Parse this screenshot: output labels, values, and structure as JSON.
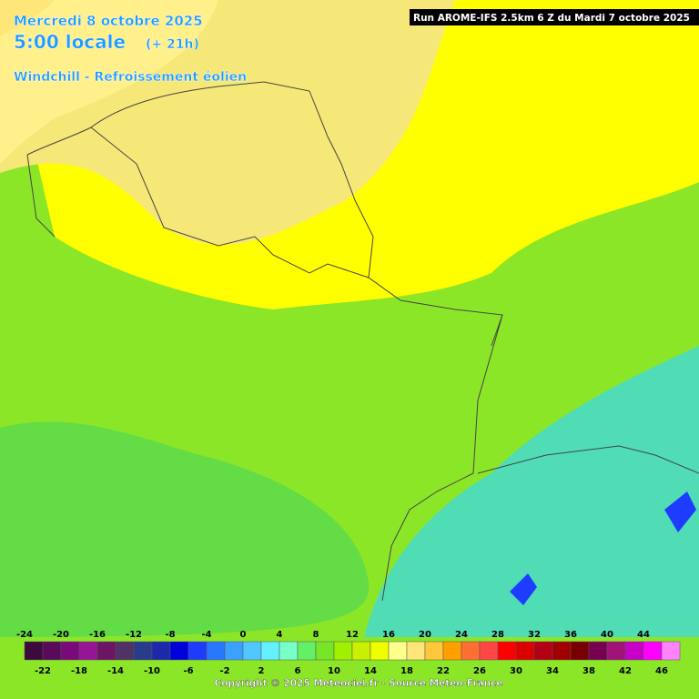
{
  "header": {
    "date": "Mercredi 8 octobre 2025",
    "time": "5:00 locale",
    "offset": "(+ 21h)",
    "parameter": "Windchill - Refroissement éolien",
    "run": "Run AROME-IFS 2.5km 6 Z du Mardi 7 octobre 2025"
  },
  "legend": {
    "items": [
      {
        "value": -24,
        "color": "#3c0a3c"
      },
      {
        "value": -22,
        "color": "#5a0a5a"
      },
      {
        "value": -20,
        "color": "#7a0a7a"
      },
      {
        "value": -18,
        "color": "#961496"
      },
      {
        "value": -16,
        "color": "#6e1464"
      },
      {
        "value": -14,
        "color": "#503264"
      },
      {
        "value": -12,
        "color": "#283c8c"
      },
      {
        "value": -10,
        "color": "#1e28aa"
      },
      {
        "value": -8,
        "color": "#0000dc"
      },
      {
        "value": -6,
        "color": "#1e3cff"
      },
      {
        "value": -4,
        "color": "#2878ff"
      },
      {
        "value": -2,
        "color": "#3ca0ff"
      },
      {
        "value": 0,
        "color": "#50c8ff"
      },
      {
        "value": 2,
        "color": "#64f0ff"
      },
      {
        "value": 4,
        "color": "#78ffc8"
      },
      {
        "value": 6,
        "color": "#64f064"
      },
      {
        "value": 8,
        "color": "#78e628"
      },
      {
        "value": 10,
        "color": "#a0f000"
      },
      {
        "value": 12,
        "color": "#c8f000"
      },
      {
        "value": 14,
        "color": "#f0ff00"
      },
      {
        "value": 16,
        "color": "#ffff8c"
      },
      {
        "value": 18,
        "color": "#ffe678"
      },
      {
        "value": 20,
        "color": "#ffc83c"
      },
      {
        "value": 22,
        "color": "#ffa000"
      },
      {
        "value": 24,
        "color": "#ff6e32"
      },
      {
        "value": 26,
        "color": "#ff4646"
      },
      {
        "value": 28,
        "color": "#ff0000"
      },
      {
        "value": 30,
        "color": "#dc0000"
      },
      {
        "value": 32,
        "color": "#b40014"
      },
      {
        "value": 34,
        "color": "#a00000"
      },
      {
        "value": 36,
        "color": "#780000"
      },
      {
        "value": 38,
        "color": "#780050"
      },
      {
        "value": 40,
        "color": "#a0147a"
      },
      {
        "value": 42,
        "color": "#c800c8"
      },
      {
        "value": 44,
        "color": "#ff00ff"
      },
      {
        "value": 46,
        "color": "#ff82ff"
      }
    ]
  },
  "footer": {
    "copyright": "Copyright © 2025 Meteociel.fr - Source Meteo-France"
  }
}
